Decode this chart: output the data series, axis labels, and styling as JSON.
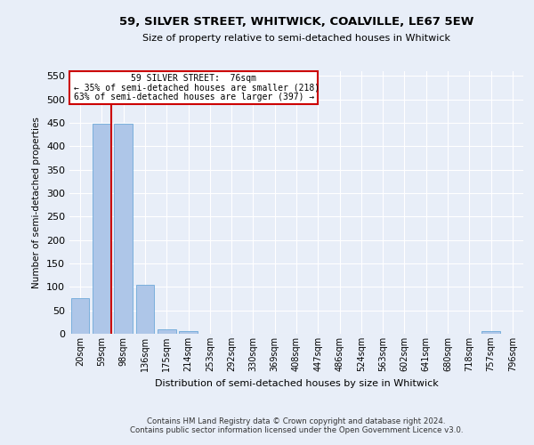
{
  "title": "59, SILVER STREET, WHITWICK, COALVILLE, LE67 5EW",
  "subtitle": "Size of property relative to semi-detached houses in Whitwick",
  "xlabel": "Distribution of semi-detached houses by size in Whitwick",
  "ylabel": "Number of semi-detached properties",
  "categories": [
    "20sqm",
    "59sqm",
    "98sqm",
    "136sqm",
    "175sqm",
    "214sqm",
    "253sqm",
    "292sqm",
    "330sqm",
    "369sqm",
    "408sqm",
    "447sqm",
    "486sqm",
    "524sqm",
    "563sqm",
    "602sqm",
    "641sqm",
    "680sqm",
    "718sqm",
    "757sqm",
    "796sqm"
  ],
  "values": [
    75,
    448,
    448,
    105,
    10,
    5,
    0,
    0,
    0,
    0,
    0,
    0,
    0,
    0,
    0,
    0,
    0,
    0,
    0,
    5,
    0
  ],
  "bar_color": "#aec6e8",
  "bar_edge_color": "#5a9fd4",
  "property_line_bar_index": 1,
  "property_size": "76sqm",
  "pct_smaller": 35,
  "count_smaller": 218,
  "pct_larger": 63,
  "count_larger": 397,
  "annotation_box_color": "#cc0000",
  "ylim_max": 560,
  "yticks": [
    0,
    50,
    100,
    150,
    200,
    250,
    300,
    350,
    400,
    450,
    500,
    550
  ],
  "footer1": "Contains HM Land Registry data © Crown copyright and database right 2024.",
  "footer2": "Contains public sector information licensed under the Open Government Licence v3.0.",
  "bg_color": "#e8eef8",
  "grid_color": "#ffffff"
}
